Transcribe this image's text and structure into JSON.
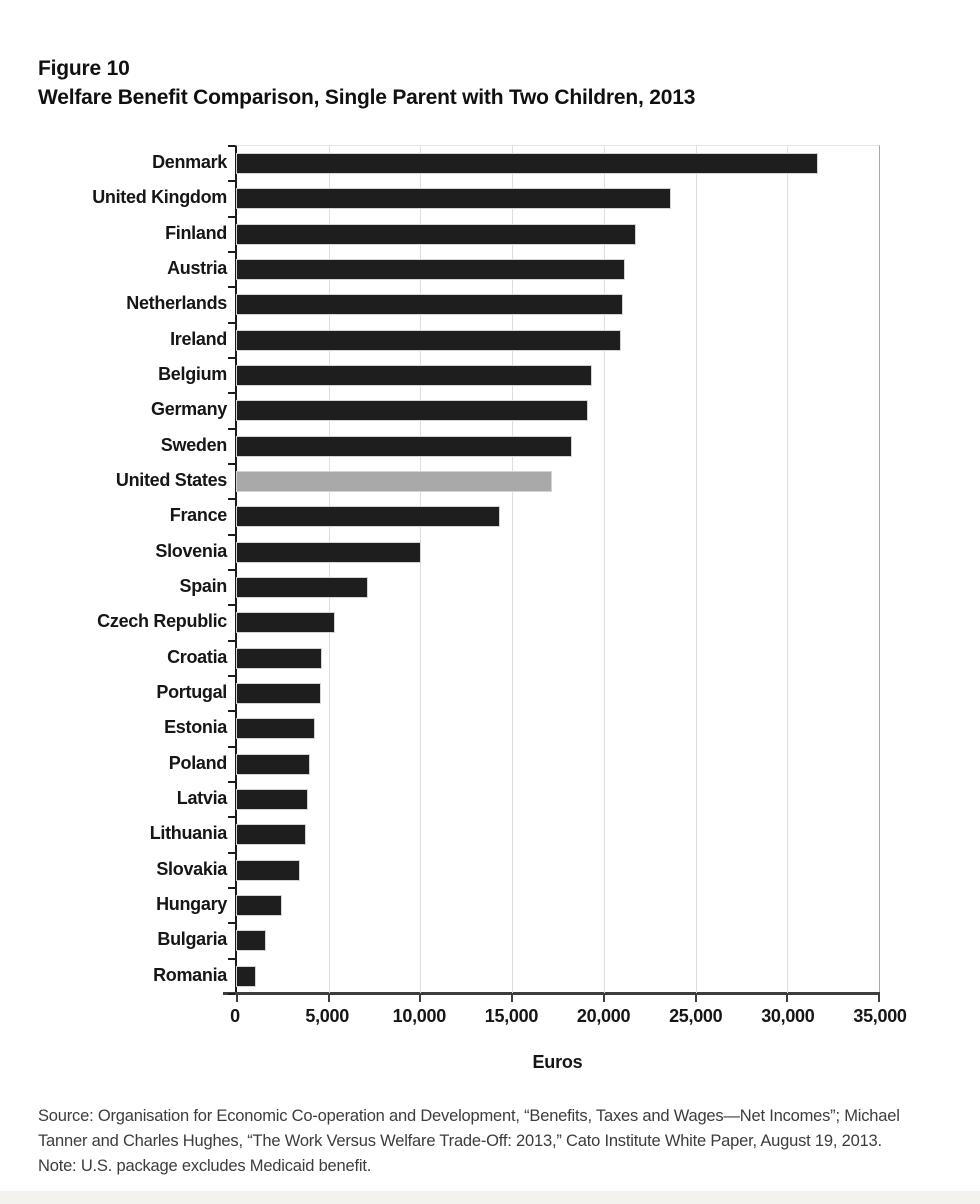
{
  "figure": {
    "label": "Figure 10",
    "title": "Welfare Benefit Comparison, Single Parent with Two Children, 2013"
  },
  "chart_data": {
    "type": "bar",
    "orientation": "horizontal",
    "title": "Welfare Benefit Comparison, Single Parent with Two Children, 2013",
    "xlabel": "Euros",
    "ylabel": "",
    "xlim": [
      0,
      35000
    ],
    "grid": true,
    "x_ticks": [
      "0",
      "5,000",
      "10,000",
      "15,000",
      "20,000",
      "25,000",
      "30,000",
      "35,000"
    ],
    "x_tick_values": [
      0,
      5000,
      10000,
      15000,
      20000,
      25000,
      30000,
      35000
    ],
    "categories": [
      "Denmark",
      "United Kingdom",
      "Finland",
      "Austria",
      "Netherlands",
      "Ireland",
      "Belgium",
      "Germany",
      "Sweden",
      "United States",
      "France",
      "Slovenia",
      "Spain",
      "Czech Republic",
      "Croatia",
      "Portugal",
      "Estonia",
      "Poland",
      "Latvia",
      "Lithuania",
      "Slovakia",
      "Hungary",
      "Bulgaria",
      "Romania"
    ],
    "values": [
      31600,
      23600,
      21700,
      21100,
      21000,
      20900,
      19300,
      19100,
      18200,
      17100,
      14300,
      10000,
      7100,
      5300,
      4600,
      4500,
      4200,
      3900,
      3800,
      3700,
      3400,
      2400,
      1500,
      1000
    ],
    "highlight_category": "United States",
    "bar_color": "#1e1e1e",
    "highlight_color": "#a9a9a9",
    "gridline_color": "#dedede",
    "legend": "none"
  },
  "source_note": {
    "lines": [
      "Source: Organisation for Economic Co-operation and Development, “Benefits, Taxes and Wages—Net Incomes”; Michael",
      "Tanner and Charles Hughes, “The Work Versus Welfare Trade-Off: 2013,” Cato Institute White Paper, August 19, 2013.",
      "Note: U.S. package excludes Medicaid benefit."
    ]
  }
}
